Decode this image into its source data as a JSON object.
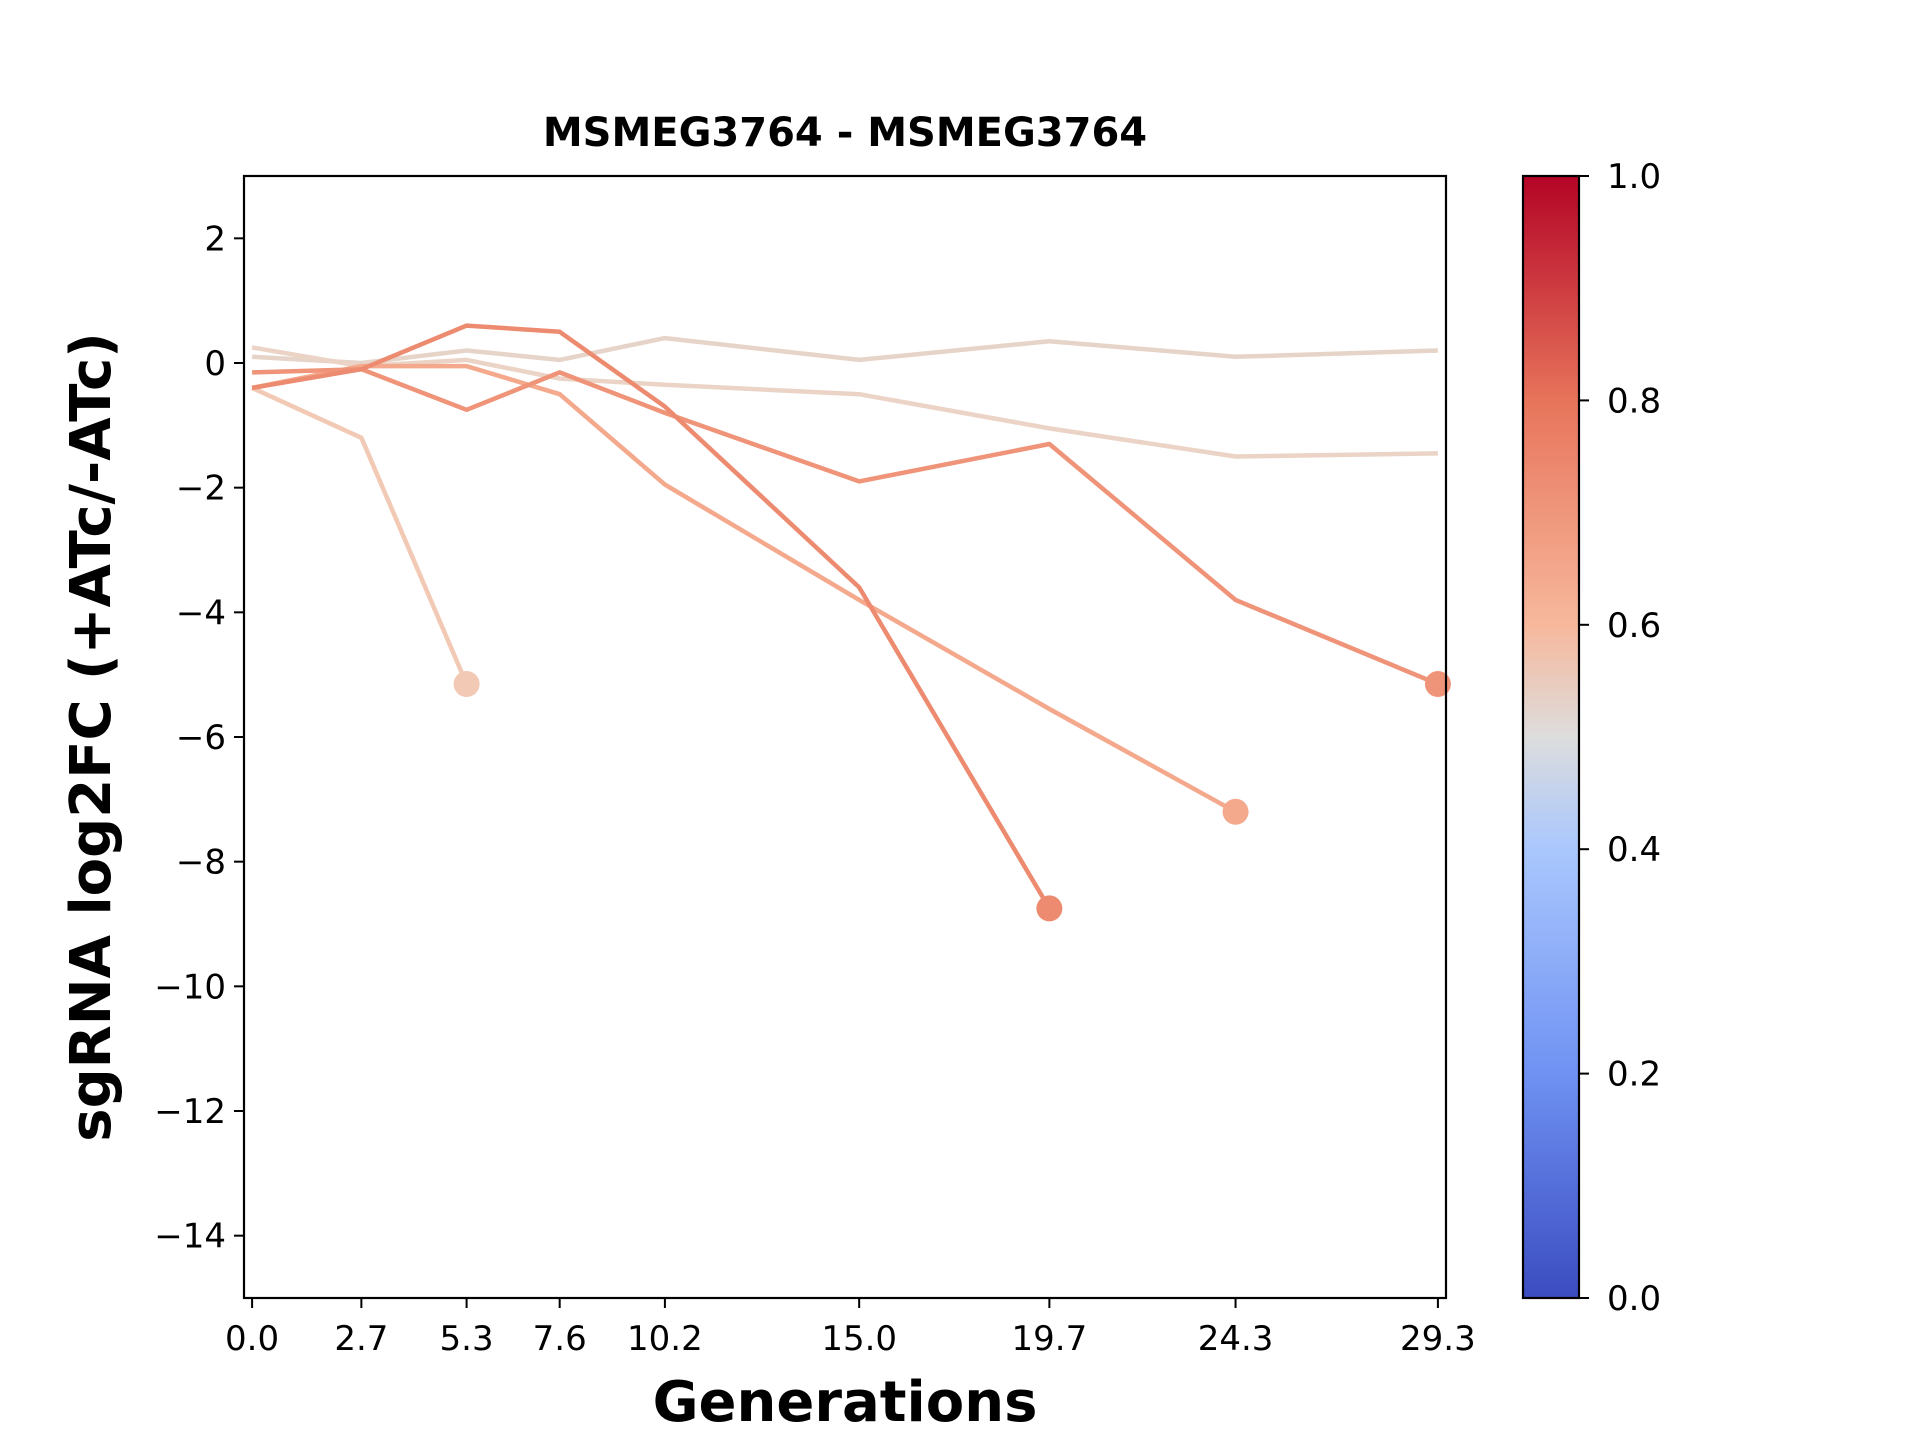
{
  "chart_data": {
    "type": "line",
    "title": "MSMEG3764 - MSMEG3764",
    "xlabel": "Generations",
    "ylabel": "sgRNA log2FC (+ATc/-ATc)",
    "xlim": [
      -0.2,
      29.5
    ],
    "ylim": [
      -15,
      3
    ],
    "x_ticks": [
      0.0,
      2.7,
      5.3,
      7.6,
      10.2,
      15.0,
      19.7,
      24.3,
      29.3
    ],
    "x_tick_labels": [
      "0.0",
      "2.7",
      "5.3",
      "7.6",
      "10.2",
      "15.0",
      "19.7",
      "24.3",
      "29.3"
    ],
    "y_ticks": [
      2,
      0,
      -2,
      -4,
      -6,
      -8,
      -10,
      -12,
      -14
    ],
    "y_tick_labels": [
      "2",
      "0",
      "−2",
      "−4",
      "−6",
      "−8",
      "−10",
      "−12",
      "−14"
    ],
    "grid": false,
    "colorbar": {
      "colormap": "coolwarm",
      "range": [
        0.0,
        1.0
      ],
      "ticks": [
        0.0,
        0.2,
        0.4,
        0.6,
        0.8,
        1.0
      ],
      "tick_labels": [
        "0.0",
        "0.2",
        "0.4",
        "0.6",
        "0.8",
        "1.0"
      ]
    },
    "series": [
      {
        "color": "#e6d4c9",
        "end_marker": false,
        "x": [
          0.0,
          2.7,
          5.3,
          7.6,
          10.2,
          15.0,
          19.7,
          24.3,
          29.3
        ],
        "y": [
          0.1,
          0.0,
          0.2,
          0.05,
          0.4,
          0.05,
          0.35,
          0.1,
          0.2
        ]
      },
      {
        "color": "#ebd3c6",
        "end_marker": false,
        "x": [
          0.0,
          2.7,
          5.3,
          7.6,
          10.2,
          15.0,
          19.7,
          24.3,
          29.3
        ],
        "y": [
          0.25,
          -0.05,
          0.05,
          -0.25,
          -0.35,
          -0.5,
          -1.05,
          -1.5,
          -1.45
        ]
      },
      {
        "color": "#f2c9b4",
        "end_marker": true,
        "x": [
          0.0,
          2.7,
          5.3
        ],
        "y": [
          -0.4,
          -1.2,
          -5.15
        ]
      },
      {
        "color": "#f4a88c",
        "end_marker": true,
        "x": [
          0.0,
          2.7,
          5.3,
          7.6,
          10.2,
          15.0,
          19.7,
          24.3
        ],
        "y": [
          -0.4,
          -0.05,
          -0.05,
          -0.5,
          -1.95,
          -3.8,
          -5.55,
          -7.2
        ]
      },
      {
        "color": "#ef9479",
        "end_marker": true,
        "x": [
          0.0,
          2.7,
          5.3,
          7.6,
          10.2,
          15.0,
          19.7,
          24.3,
          29.3
        ],
        "y": [
          -0.15,
          -0.1,
          -0.75,
          -0.15,
          -0.8,
          -1.9,
          -1.3,
          -3.8,
          -5.15
        ]
      },
      {
        "color": "#ec8b6f",
        "end_marker": true,
        "x": [
          0.0,
          2.7,
          5.3,
          7.6,
          10.2,
          15.0,
          19.7
        ],
        "y": [
          -0.4,
          -0.1,
          0.6,
          0.5,
          -0.7,
          -3.6,
          -8.75
        ]
      }
    ]
  }
}
